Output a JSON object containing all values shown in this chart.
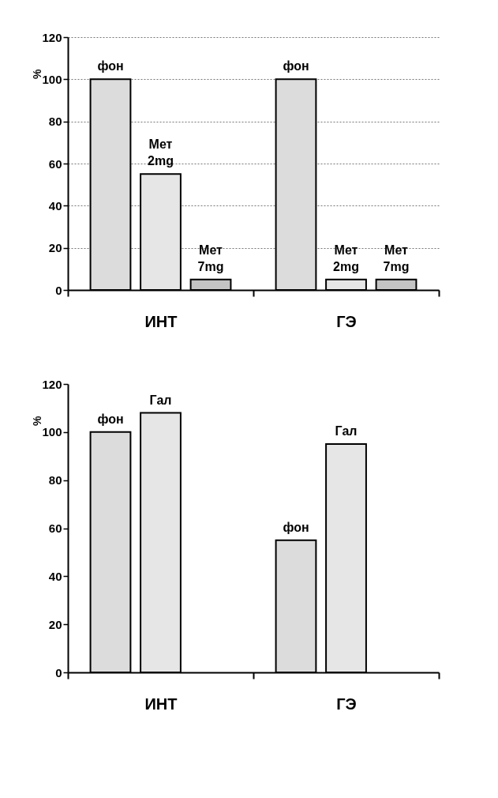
{
  "chart_data": [
    {
      "type": "bar",
      "categories": [
        "ИНТ",
        "ГЭ"
      ],
      "ylabel": "%",
      "ylim": [
        0,
        120
      ],
      "yticks": [
        0,
        20,
        40,
        60,
        80,
        100,
        120
      ],
      "grid": "y",
      "legend": false,
      "series": [
        {
          "name": "фон",
          "color": "#dcdcdc",
          "values": [
            100,
            100
          ]
        },
        {
          "name": "Мет 2mg",
          "color": "#e6e6e6",
          "values": [
            55,
            5
          ]
        },
        {
          "name": "Мет 7mg",
          "color": "#c4c4c4",
          "values": [
            5,
            5
          ]
        }
      ]
    },
    {
      "type": "bar",
      "categories": [
        "ИНТ",
        "ГЭ"
      ],
      "ylabel": "%",
      "ylim": [
        0,
        120
      ],
      "yticks": [
        0,
        20,
        40,
        60,
        80,
        100,
        120
      ],
      "legend": false,
      "series": [
        {
          "name": "фон",
          "color": "#dcdcdc",
          "values": [
            100,
            55
          ]
        },
        {
          "name": "Гал",
          "color": "#ececec",
          "values": [
            108,
            95
          ]
        }
      ]
    }
  ]
}
